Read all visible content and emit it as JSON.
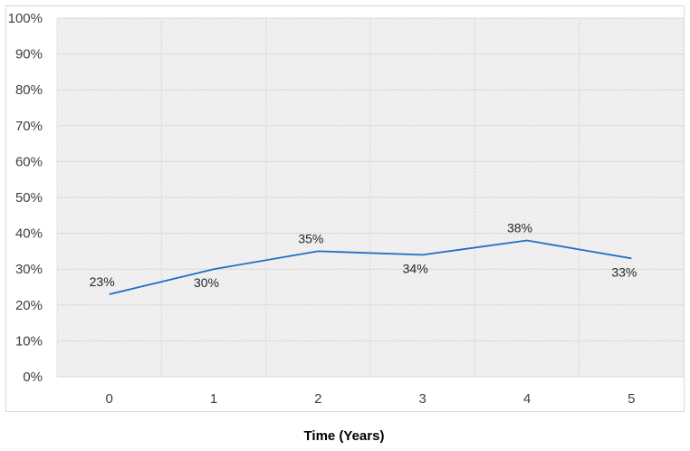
{
  "chart_data": {
    "type": "line",
    "title": "",
    "xlabel": "Time (Years)",
    "ylabel": "",
    "categories": [
      "0",
      "1",
      "2",
      "3",
      "4",
      "5"
    ],
    "series": [
      {
        "values": [
          23,
          30,
          35,
          34,
          38,
          33
        ],
        "labels": [
          "23%",
          "30%",
          "35%",
          "34%",
          "38%",
          "33%"
        ],
        "color": "#1f6fc5"
      }
    ],
    "ylim": [
      0,
      100
    ],
    "yticks": [
      0,
      10,
      20,
      30,
      40,
      50,
      60,
      70,
      80,
      90,
      100
    ],
    "ytick_labels": [
      "0%",
      "10%",
      "20%",
      "30%",
      "40%",
      "50%",
      "60%",
      "70%",
      "80%",
      "90%",
      "100%"
    ],
    "grid": true,
    "legend": "none",
    "plot_background": "hatched light gray"
  }
}
